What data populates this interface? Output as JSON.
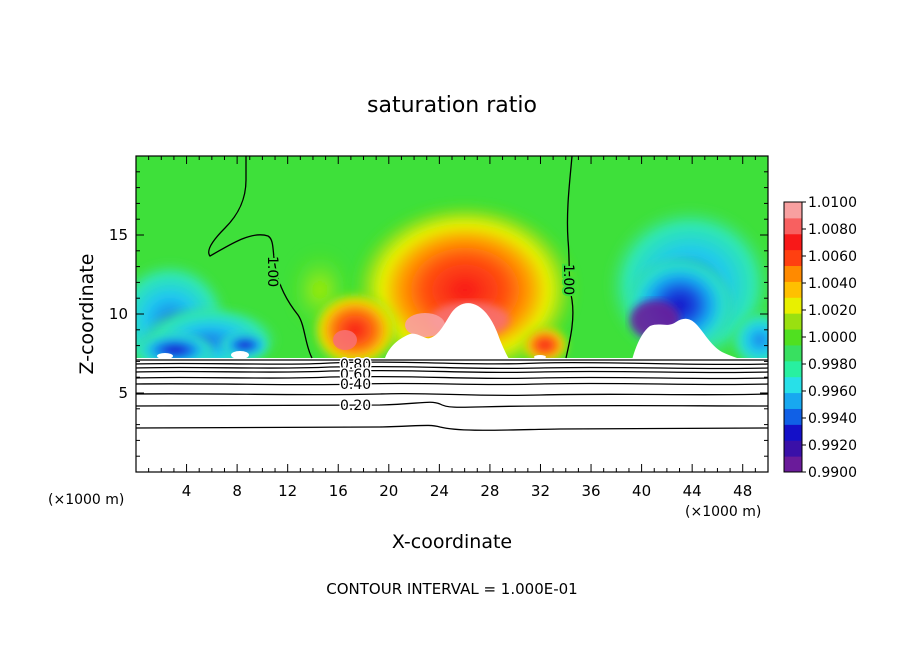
{
  "chart_data": {
    "type": "heatmap",
    "title": "saturation ratio",
    "xlabel": "X-coordinate",
    "ylabel": "Z-coordinate",
    "x_unit_note_left": "(×1000 m)",
    "x_unit_note_right": "(×1000 m)",
    "footer": "CONTOUR INTERVAL = 1.000E-01",
    "xlim": [
      0,
      50
    ],
    "ylim": [
      0,
      20
    ],
    "x_ticks": [
      4,
      8,
      12,
      16,
      20,
      24,
      28,
      32,
      36,
      40,
      44,
      48
    ],
    "x_tick_labels": [
      "4",
      "8",
      "12",
      "16",
      "20",
      "24",
      "28",
      "32",
      "36",
      "40",
      "44",
      "48"
    ],
    "y_ticks": [
      5,
      10,
      15
    ],
    "y_tick_labels": [
      "5",
      "10",
      "15"
    ],
    "colorbar": {
      "min": 0.99,
      "max": 1.01,
      "tick_labels": [
        "1.0100",
        "1.0080",
        "1.0060",
        "1.0040",
        "1.0020",
        "1.0000",
        "0.9980",
        "0.9960",
        "0.9940",
        "0.9920",
        "0.9900"
      ],
      "colors": [
        "#6a1b9a",
        "#3a10a8",
        "#1410c8",
        "#1060e6",
        "#18a8f0",
        "#28e0e8",
        "#28f0a0",
        "#38e060",
        "#50e020",
        "#9ae010",
        "#e8f000",
        "#ffc000",
        "#ff8a00",
        "#ff4010",
        "#f81818",
        "#f86060",
        "#f8a0a0"
      ]
    },
    "contour_labels": [
      "1.00",
      "1.00",
      "0.80",
      "0.60",
      "0.40",
      "0.20"
    ],
    "contour_levels": [
      0.2,
      0.4,
      0.6,
      0.8,
      1.0
    ],
    "mountain_top_z": 7.2
  }
}
